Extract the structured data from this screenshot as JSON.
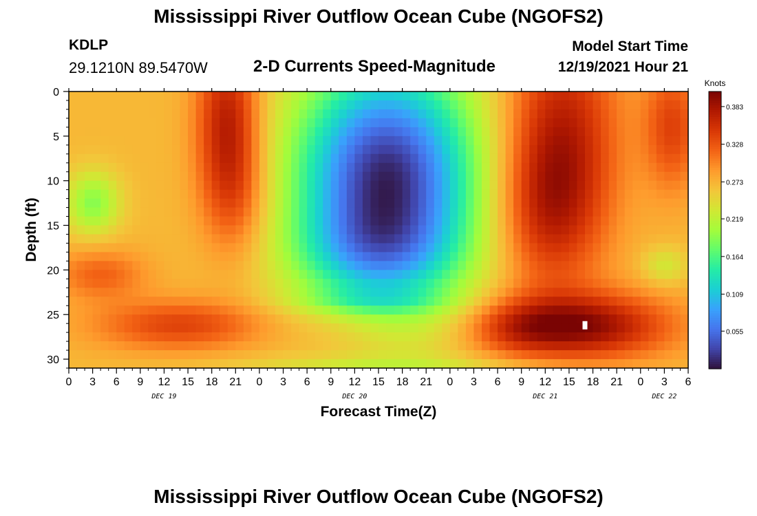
{
  "header": {
    "title": "Mississippi River Outflow Ocean Cube (NGOFS2)",
    "station_id": "KDLP",
    "coordinates": "29.1210N  89.5470W",
    "subtitle": "2-D Currents Speed-Magnitude",
    "model_start_label": "Model Start Time",
    "model_start_value": "12/19/2021 Hour 21"
  },
  "footer": {
    "title": "Mississippi River Outflow Ocean Cube (NGOFS2)"
  },
  "chart_data": {
    "type": "heatmap",
    "title": "2-D Currents Speed-Magnitude",
    "xlabel": "Forecast Time(Z)",
    "ylabel": "Depth (ft)",
    "x_unit": "hours from 00Z Dec 19",
    "x_range": [
      0,
      78
    ],
    "x_ticks": [
      0,
      3,
      6,
      9,
      12,
      15,
      18,
      21,
      24,
      27,
      30,
      33,
      36,
      39,
      42,
      45,
      48,
      51,
      54,
      57,
      60,
      63,
      66,
      69,
      72,
      75,
      78
    ],
    "x_tick_labels": [
      "0",
      "3",
      "6",
      "9",
      "12",
      "15",
      "18",
      "21",
      "0",
      "3",
      "6",
      "9",
      "12",
      "15",
      "18",
      "21",
      "0",
      "3",
      "6",
      "9",
      "12",
      "15",
      "18",
      "21",
      "0",
      "3",
      "6"
    ],
    "day_labels": [
      {
        "x": 12,
        "label": "DEC 19"
      },
      {
        "x": 36,
        "label": "DEC 20"
      },
      {
        "x": 60,
        "label": "DEC 21"
      },
      {
        "x": 75,
        "label": "DEC 22"
      }
    ],
    "y_range": [
      0,
      31
    ],
    "y_inverted": true,
    "y_ticks": [
      0,
      5,
      10,
      15,
      20,
      25,
      30
    ],
    "colorbar": {
      "unit_label": "Knots",
      "min": 0.0,
      "max": 0.405,
      "ticks": [
        0.383,
        0.328,
        0.273,
        0.219,
        0.164,
        0.109,
        0.055
      ],
      "colormap": [
        "#30123b",
        "#4145ab",
        "#4675ed",
        "#39a2fc",
        "#1bcfd4",
        "#24eca6",
        "#61fc6c",
        "#a4fc3b",
        "#d1e834",
        "#f3c63a",
        "#fe9b2d",
        "#f36315",
        "#d93806",
        "#b11901",
        "#7a0403"
      ]
    },
    "marker": {
      "x": 65,
      "y": 26.2
    },
    "field_model": {
      "background": 0.27,
      "features": [
        {
          "x": 40,
          "y": 10,
          "sx": 8.0,
          "sy": 9.5,
          "amp": -0.26
        },
        {
          "x": 38,
          "y": 18,
          "sx": 7.5,
          "sy": 3.5,
          "amp": -0.05
        },
        {
          "x": 20,
          "y": 3,
          "sx": 2.8,
          "sy": 6.5,
          "amp": 0.1
        },
        {
          "x": 21,
          "y": 12,
          "sx": 3.0,
          "sy": 5.0,
          "amp": 0.05
        },
        {
          "x": 62,
          "y": 5,
          "sx": 5.0,
          "sy": 9.0,
          "amp": 0.1
        },
        {
          "x": 60,
          "y": 14,
          "sx": 4.5,
          "sy": 6.0,
          "amp": 0.06
        },
        {
          "x": 76,
          "y": 4,
          "sx": 2.5,
          "sy": 5.0,
          "amp": 0.07
        },
        {
          "x": 65,
          "y": 26.3,
          "sx": 7.5,
          "sy": 2.6,
          "amp": 0.12
        },
        {
          "x": 56,
          "y": 26.5,
          "sx": 4.5,
          "sy": 2.2,
          "amp": 0.05
        },
        {
          "x": 14,
          "y": 26.2,
          "sx": 7.5,
          "sy": 2.0,
          "amp": 0.07
        },
        {
          "x": 3,
          "y": 12.5,
          "sx": 2.4,
          "sy": 2.5,
          "amp": -0.08
        },
        {
          "x": 4,
          "y": 20.5,
          "sx": 4.0,
          "sy": 2.0,
          "amp": 0.05
        },
        {
          "x": 35,
          "y": 27,
          "sx": 5.0,
          "sy": 2.5,
          "amp": 0.02
        },
        {
          "x": 75,
          "y": 19.5,
          "sx": 2.0,
          "sy": 1.5,
          "amp": -0.04
        },
        {
          "x": 38,
          "y": 23.5,
          "sx": 7.0,
          "sy": 1.0,
          "amp": -0.04
        },
        {
          "x": 40,
          "y": 30.7,
          "sx": 15.0,
          "sy": 0.8,
          "amp": -0.03
        }
      ]
    }
  }
}
